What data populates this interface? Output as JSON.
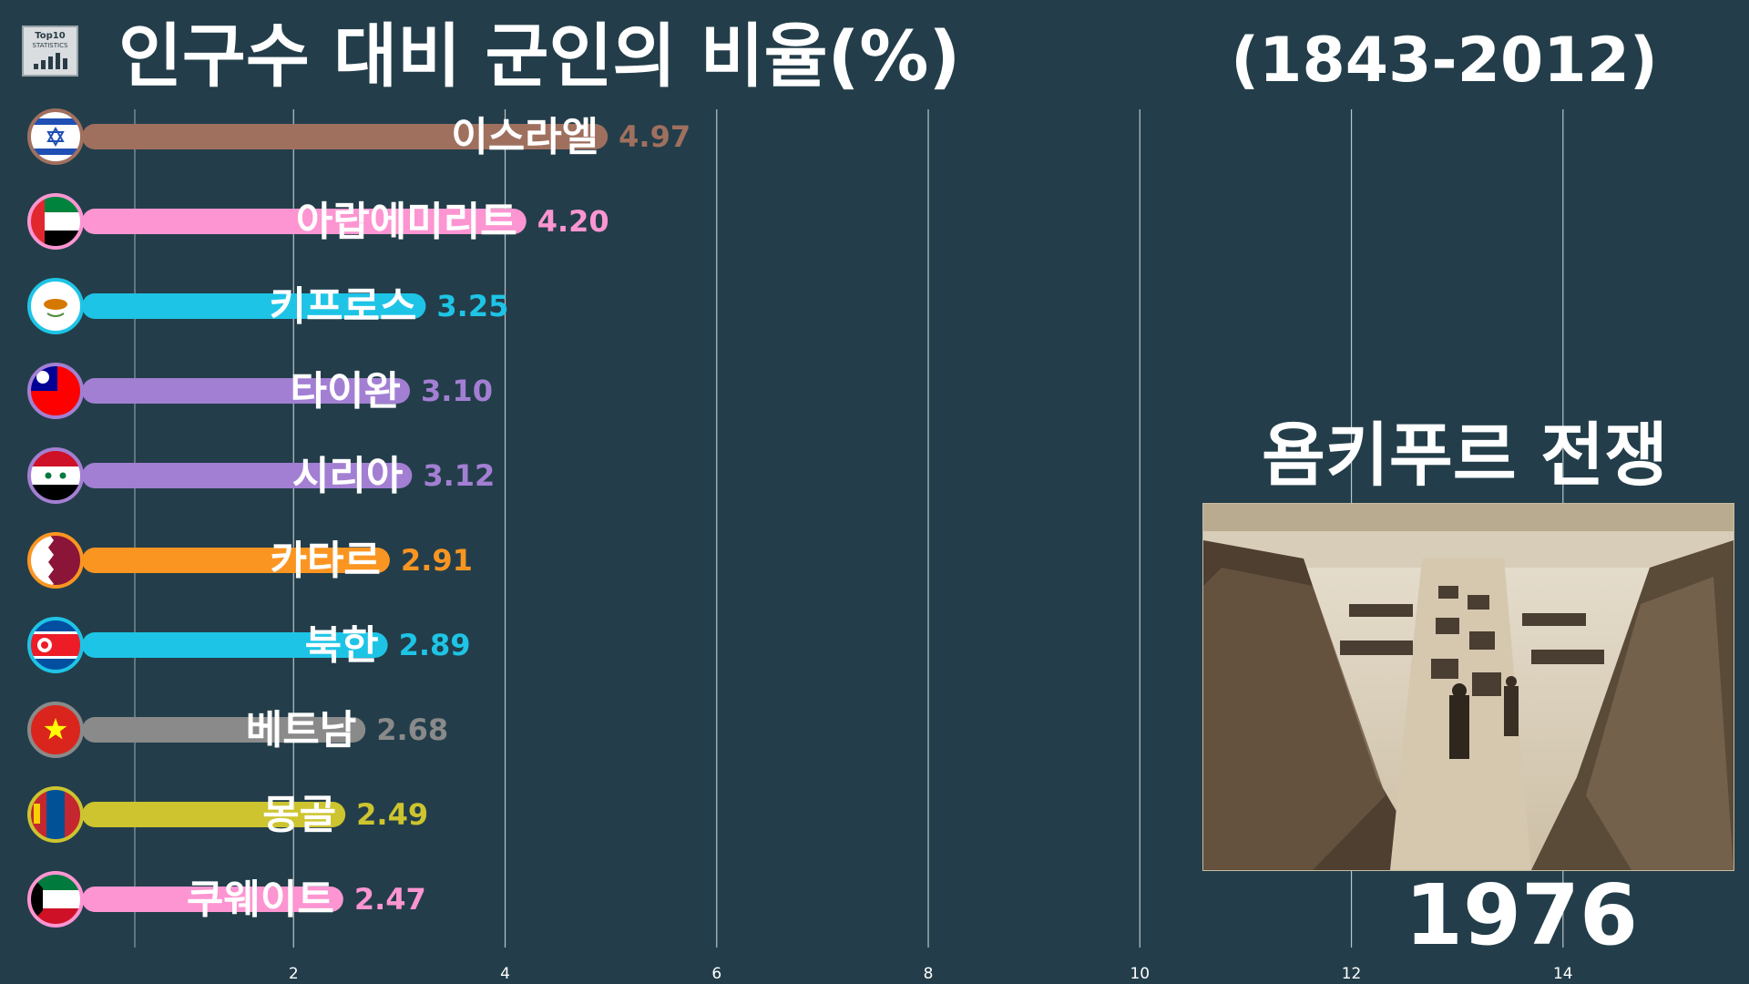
{
  "title": "인구수 대비 군인의 비율(%)",
  "range": "(1843-2012)",
  "logo": {
    "line1": "Top10",
    "line2": "STATISTICS"
  },
  "event": {
    "title": "욤키푸르 전쟁",
    "photo_icon": "pontoon-bridge-photo"
  },
  "year": "1976",
  "chart_data": {
    "type": "bar",
    "orientation": "horizontal",
    "title": "인구수 대비 군인의 비율(%)",
    "year": "1976",
    "xlim": [
      0,
      15.5
    ],
    "ticks": [
      2,
      4,
      6,
      8,
      10,
      12,
      14
    ],
    "grid": true,
    "categories": [
      "이스라엘",
      "아랍에미리트",
      "키프로스",
      "타이완",
      "시리아",
      "카타르",
      "북한",
      "베트남",
      "몽골",
      "쿠웨이트"
    ],
    "values": [
      4.97,
      4.2,
      3.25,
      3.1,
      3.12,
      2.91,
      2.89,
      2.68,
      2.49,
      2.47
    ],
    "value_labels": [
      "4.97",
      "4.20",
      "3.25",
      "3.10",
      "3.12",
      "2.91",
      "2.89",
      "2.68",
      "2.49",
      "2.47"
    ],
    "colors": [
      "#a0705f",
      "#fc95d2",
      "#1ec4e6",
      "#a37fd3",
      "#a37fd3",
      "#fb9522",
      "#1ec4e6",
      "#8a8a8a",
      "#cdc42f",
      "#fc95d2"
    ],
    "flags": [
      "israel-flag-icon",
      "uae-flag-icon",
      "cyprus-flag-icon",
      "taiwan-flag-icon",
      "syria-flag-icon",
      "qatar-flag-icon",
      "north-korea-flag-icon",
      "vietnam-flag-icon",
      "mongolia-flag-icon",
      "kuwait-flag-icon"
    ]
  }
}
